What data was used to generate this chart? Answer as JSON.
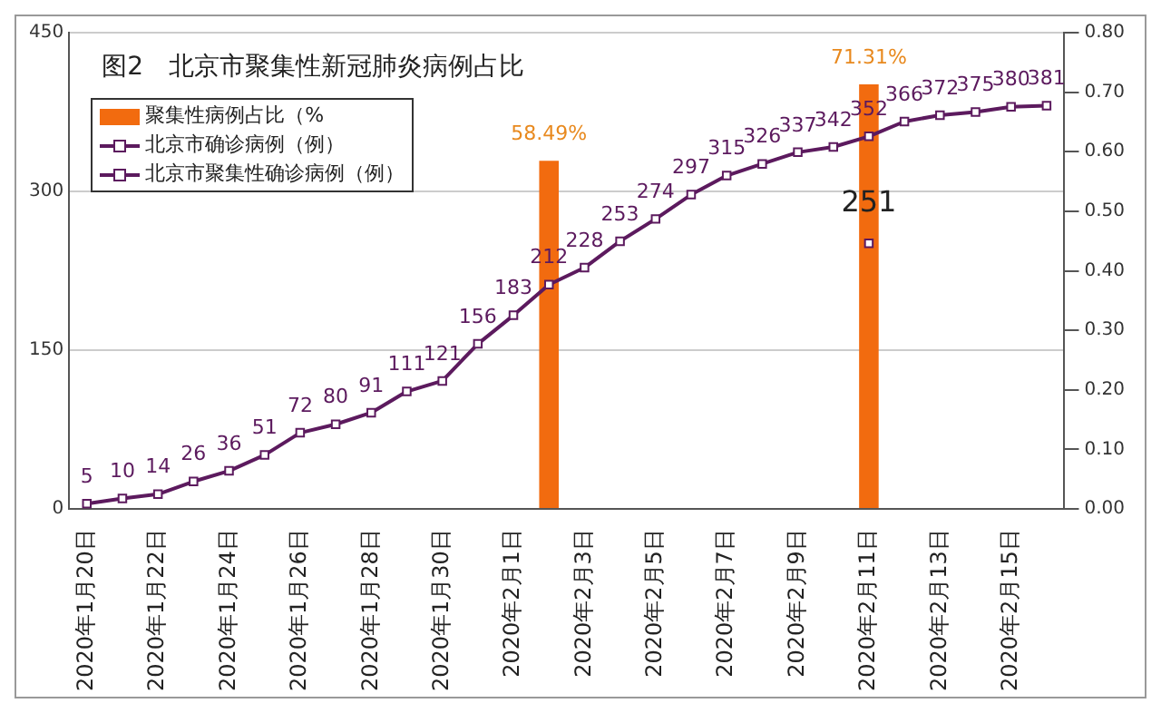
{
  "chart_data": {
    "type": "line",
    "title": "图2　北京市聚集性新冠肺炎病例占比",
    "categories": [
      "2020年1月20日",
      null,
      "2020年1月22日",
      null,
      "2020年1月24日",
      null,
      "2020年1月26日",
      null,
      "2020年1月28日",
      null,
      "2020年1月30日",
      null,
      "2020年2月1日",
      null,
      "2020年2月3日",
      null,
      "2020年2月5日",
      null,
      "2020年2月7日",
      null,
      "2020年2月9日",
      null,
      "2020年2月11日",
      null,
      "2020年2月13日",
      null,
      "2020年2月15日",
      null
    ],
    "series": [
      {
        "name": "聚集性病例占比（%",
        "type": "bar",
        "axis": "y2",
        "color": "#f26b0f",
        "values": [
          null,
          null,
          null,
          null,
          null,
          null,
          null,
          null,
          null,
          null,
          null,
          null,
          null,
          0.5849,
          null,
          null,
          null,
          null,
          null,
          null,
          null,
          null,
          0.7131,
          null,
          null,
          null,
          null,
          null
        ],
        "value_labels": [
          null,
          null,
          null,
          null,
          null,
          null,
          null,
          null,
          null,
          null,
          null,
          null,
          null,
          "58.49%",
          null,
          null,
          null,
          null,
          null,
          null,
          null,
          null,
          "71.31%",
          null,
          null,
          null,
          null,
          null
        ]
      },
      {
        "name": "北京市确诊病例（例）",
        "color": "#5c1a5e",
        "values": [
          5,
          10,
          14,
          26,
          36,
          51,
          72,
          80,
          91,
          111,
          121,
          156,
          183,
          212,
          228,
          253,
          274,
          297,
          315,
          326,
          337,
          342,
          352,
          366,
          372,
          375,
          380,
          381
        ]
      },
      {
        "name": "北京市聚集性确诊病例（例）",
        "color": "#5c1a5e",
        "values": [
          null,
          null,
          null,
          null,
          null,
          null,
          null,
          null,
          null,
          null,
          null,
          null,
          null,
          null,
          null,
          null,
          null,
          null,
          null,
          null,
          null,
          null,
          251,
          null,
          null,
          null,
          null,
          null
        ]
      }
    ],
    "ylim": [
      0,
      450
    ],
    "yticks": [
      0,
      150,
      300,
      450
    ],
    "y2lim": [
      0,
      0.8
    ],
    "y2ticks": [
      {
        "value": 0,
        "label": "0.00"
      },
      {
        "value": 0.1,
        "label": "0.10"
      },
      {
        "value": 0.2,
        "label": "0.20"
      },
      {
        "value": 0.3,
        "label": "0.30"
      },
      {
        "value": 0.4,
        "label": "0.40"
      },
      {
        "value": 0.5,
        "label": "0.50"
      },
      {
        "value": 0.6,
        "label": "0.60"
      },
      {
        "value": 0.7,
        "label": "0.70"
      },
      {
        "value": 0.8,
        "label": "0.80"
      }
    ],
    "grid": "y",
    "legend": "top left",
    "marker": "square",
    "line_style": "solid",
    "data_labels": true
  }
}
